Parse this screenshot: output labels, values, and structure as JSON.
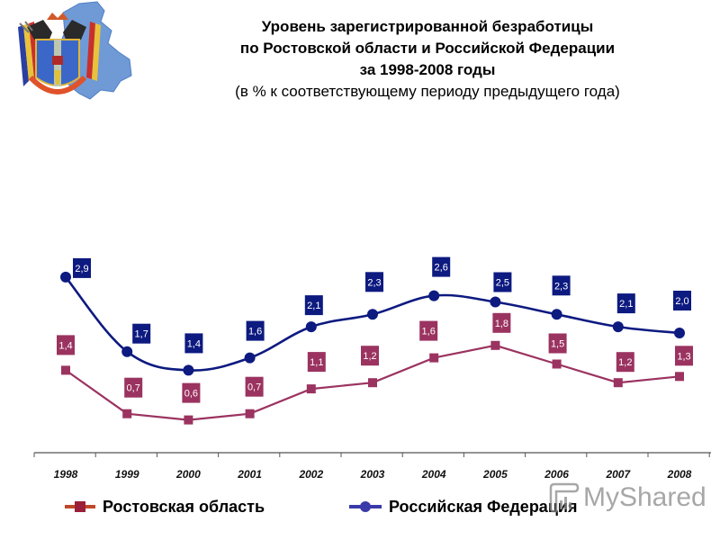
{
  "header": {
    "title_lines": [
      "Уровень зарегистрированной безработицы",
      "по Ростовской области и Российской Федерации",
      "за 1998-2008 годы"
    ],
    "subtitle": "(в % к соответствующему периоду предыдущего года)"
  },
  "logo": {
    "icon": "rostov-oblast-coat-of-arms-map-icon"
  },
  "legend": [
    {
      "label": "Ростовская область",
      "marker": "square",
      "color": "#9b3360"
    },
    {
      "label": "Российская Федерация",
      "marker": "circle",
      "color": "#0d1a80"
    }
  ],
  "watermark": {
    "text": "MyShared"
  },
  "chart_data": {
    "type": "line",
    "title": "Уровень зарегистрированной безработицы по Ростовской области и Российской Федерации за 1998-2008 годы",
    "subtitle": "(в % к соответствующему периоду предыдущего года)",
    "xlabel": "",
    "ylabel": "",
    "categories": [
      "1998",
      "1999",
      "2000",
      "2001",
      "2002",
      "2003",
      "2004",
      "2005",
      "2006",
      "2007",
      "2008"
    ],
    "series": [
      {
        "name": "Ростовская область",
        "color": "#9b3360",
        "marker": "square",
        "values": [
          1.4,
          0.7,
          0.6,
          0.7,
          1.1,
          1.2,
          1.6,
          1.8,
          1.5,
          1.2,
          1.3
        ],
        "labels": [
          "1,4",
          "0,7",
          "0,6",
          "0,7",
          "1,1",
          "1,2",
          "1,6",
          "1,8",
          "1,5",
          "1,2",
          "1,3"
        ]
      },
      {
        "name": "Российская Федерация",
        "color": "#0d1a80",
        "marker": "circle",
        "values": [
          2.9,
          1.7,
          1.4,
          1.6,
          2.1,
          2.3,
          2.6,
          2.5,
          2.3,
          2.1,
          2.0
        ],
        "labels": [
          "2,9",
          "1,7",
          "1,4",
          "1,6",
          "2,1",
          "2,3",
          "2,6",
          "2,5",
          "2,3",
          "2,1",
          "2,0"
        ]
      }
    ],
    "y_axis_visible": false,
    "grid": false,
    "legend_position": "bottom",
    "data_labels": true
  }
}
